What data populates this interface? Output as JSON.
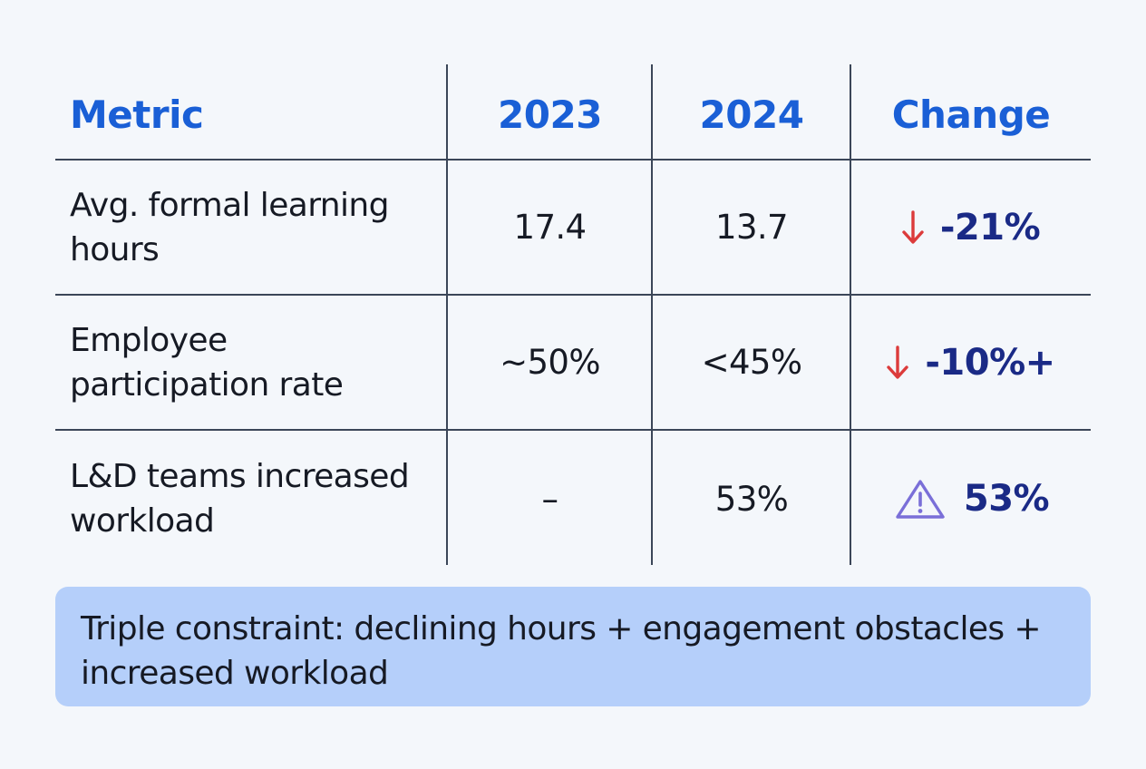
{
  "chart_data": {
    "type": "table",
    "columns": [
      "Metric",
      "2023",
      "2024",
      "Change"
    ],
    "rows": [
      {
        "metric": "Avg. formal learning hours",
        "y2023": "17.4",
        "y2024": "13.7",
        "change": "-21%",
        "change_icon": "arrow-down-icon"
      },
      {
        "metric": "Employee participation rate",
        "y2023": "~50%",
        "y2024": "<45%",
        "change": "-10%+",
        "change_icon": "arrow-down-icon"
      },
      {
        "metric": "L&D teams increased workload",
        "y2023": "–",
        "y2024": "53%",
        "change": "53%",
        "change_icon": "warning-icon"
      }
    ]
  },
  "callout": {
    "text": "Triple constraint: declining hours + engagement obstacles + increased workload"
  },
  "colors": {
    "header": "#1a5fd6",
    "change_text": "#1a2a86",
    "arrow_down": "#dc3b3b",
    "warning": "#7a6fd8",
    "callout_bg": "#b5cffa"
  }
}
